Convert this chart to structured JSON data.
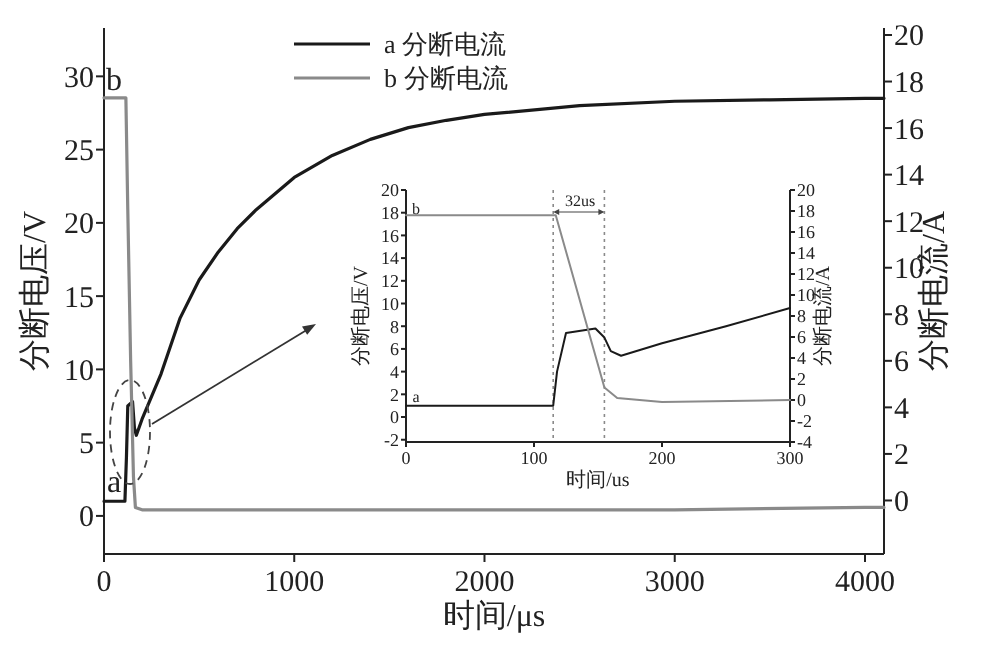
{
  "chart_data": [
    {
      "type": "line",
      "xlabel": "时间/μs",
      "ylabel": "分断电压/V",
      "y2label": "分断电流/A",
      "xlim": [
        0,
        4100
      ],
      "xticks": [
        0,
        1000,
        2000,
        3000,
        4000
      ],
      "ylim": [
        -2.6,
        33.3
      ],
      "yticks": [
        0,
        5,
        10,
        15,
        20,
        25,
        30
      ],
      "y2lim": [
        -2.3,
        20.3
      ],
      "y2ticks": [
        0,
        2,
        4,
        6,
        8,
        10,
        12,
        14,
        16,
        18,
        20
      ],
      "legend": "top",
      "grid": false,
      "series": [
        {
          "name": "a 分断电流",
          "color": "#1a1a1a",
          "x": [
            0,
            110,
            118,
            125,
            150,
            160,
            170,
            200,
            300,
            400,
            500,
            600,
            700,
            800,
            1000,
            1200,
            1400,
            1600,
            1800,
            2000,
            2500,
            3000,
            3500,
            4000,
            4100
          ],
          "values": [
            1,
            1,
            4,
            7.5,
            7.8,
            6,
            5.5,
            6.6,
            9.7,
            13.5,
            16.1,
            18,
            19.6,
            20.9,
            23.1,
            24.6,
            25.7,
            26.5,
            27,
            27.4,
            28,
            28.3,
            28.4,
            28.5,
            28.5
          ]
        },
        {
          "name": "b 分断电流",
          "color": "#8a8a8a",
          "axis": "y2",
          "x": [
            0,
            115,
            125,
            140,
            155,
            165,
            200,
            1000,
            2000,
            3000,
            4000,
            4100
          ],
          "values": [
            17.3,
            17.3,
            12.5,
            6,
            1,
            -0.3,
            -0.4,
            -0.4,
            -0.4,
            -0.4,
            -0.3,
            -0.3
          ]
        }
      ],
      "annotations": [
        "a",
        "b"
      ]
    },
    {
      "type": "line",
      "xlabel": "时间/us",
      "ylabel": "分断电压/V",
      "y2label": "分断电流/A",
      "xlim": [
        0,
        300
      ],
      "xticks": [
        0,
        100,
        200,
        300
      ],
      "ylim": [
        -2.2,
        20
      ],
      "yticks": [
        -2,
        0,
        2,
        4,
        6,
        8,
        10,
        12,
        14,
        16,
        18,
        20
      ],
      "y2lim": [
        -4,
        20
      ],
      "y2ticks": [
        -4,
        -2,
        0,
        2,
        4,
        6,
        8,
        10,
        12,
        14,
        16,
        18,
        20
      ],
      "grid": false,
      "series": [
        {
          "color": "#1a1a1a",
          "x": [
            0,
            115,
            118,
            125,
            148,
            155,
            160,
            168,
            200,
            250,
            300
          ],
          "values": [
            1,
            1,
            4,
            7.4,
            7.8,
            7,
            5.8,
            5.4,
            6.5,
            8,
            9.6
          ]
        },
        {
          "color": "#8a8a8a",
          "axis": "y2",
          "x": [
            0,
            117,
            130,
            145,
            155,
            165,
            200,
            300
          ],
          "values": [
            17.6,
            17.6,
            12,
            5.5,
            1.2,
            0.2,
            -0.2,
            0
          ]
        }
      ],
      "ref_lines": [
        {
          "axis": "x",
          "value": 115,
          "color": "#8a8a8a",
          "line_style": "dotted"
        },
        {
          "axis": "x",
          "value": 155,
          "color": "#8a8a8a",
          "line_style": "dotted"
        }
      ],
      "annotations": [
        "a",
        "b",
        "32us"
      ]
    }
  ]
}
